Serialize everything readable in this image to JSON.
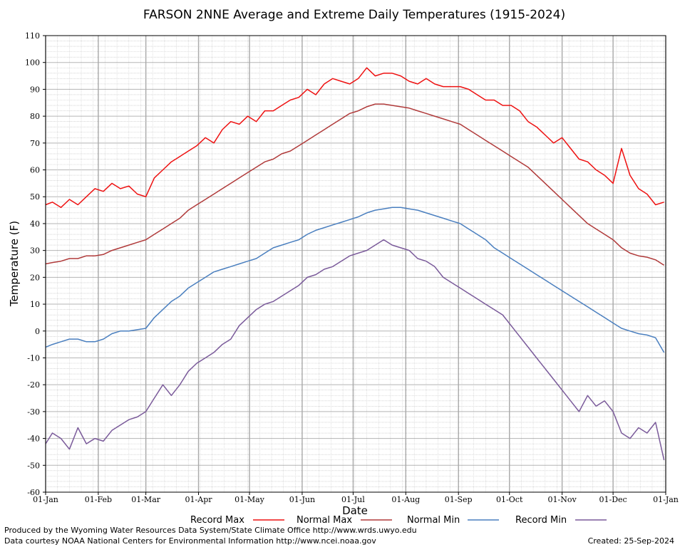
{
  "chart_data": {
    "type": "line",
    "title": "FARSON 2NNE Average and Extreme Daily Temperatures (1915-2024)",
    "xlabel": "Date",
    "ylabel": "Temperature (F)",
    "ylim": [
      -60,
      110
    ],
    "yticks": [
      110,
      100,
      90,
      80,
      70,
      60,
      50,
      40,
      30,
      20,
      10,
      0,
      -10,
      -20,
      -30,
      -40,
      -50,
      -60
    ],
    "xticks": [
      "01-Jan",
      "01-Feb",
      "01-Mar",
      "01-Apr",
      "01-May",
      "01-Jun",
      "01-Jul",
      "01-Aug",
      "01-Sep",
      "01-Oct",
      "01-Nov",
      "01-Dec",
      "01-Jan"
    ],
    "xtick_days": [
      1,
      32,
      60,
      91,
      121,
      152,
      182,
      213,
      244,
      274,
      305,
      335,
      366
    ],
    "xlim": [
      1,
      366
    ],
    "grid": true,
    "legend_placement": "bottom",
    "series": [
      {
        "name": "Record Max",
        "color": "#ee1111",
        "x": [
          1,
          5,
          10,
          15,
          20,
          25,
          30,
          35,
          40,
          45,
          50,
          55,
          60,
          65,
          70,
          75,
          80,
          85,
          90,
          95,
          100,
          105,
          110,
          115,
          120,
          125,
          130,
          135,
          140,
          145,
          150,
          155,
          160,
          165,
          170,
          175,
          180,
          185,
          190,
          195,
          200,
          205,
          210,
          215,
          220,
          225,
          230,
          235,
          240,
          245,
          250,
          255,
          260,
          265,
          270,
          275,
          280,
          285,
          290,
          295,
          300,
          305,
          310,
          315,
          320,
          325,
          330,
          335,
          340,
          345,
          350,
          355,
          360,
          365
        ],
        "values": [
          47,
          48,
          46,
          49,
          47,
          50,
          53,
          52,
          55,
          53,
          54,
          51,
          50,
          57,
          60,
          63,
          65,
          67,
          69,
          72,
          70,
          75,
          78,
          77,
          80,
          78,
          82,
          82,
          84,
          86,
          87,
          90,
          88,
          92,
          94,
          93,
          92,
          94,
          98,
          95,
          96,
          96,
          95,
          93,
          92,
          94,
          92,
          91,
          91,
          91,
          90,
          88,
          86,
          86,
          84,
          84,
          82,
          78,
          76,
          73,
          70,
          72,
          68,
          64,
          63,
          60,
          58,
          55,
          68,
          58,
          53,
          51,
          47,
          48
        ]
      },
      {
        "name": "Normal Max",
        "color": "#b03a3a",
        "x": [
          1,
          5,
          10,
          15,
          20,
          25,
          30,
          35,
          40,
          45,
          50,
          55,
          60,
          65,
          70,
          75,
          80,
          85,
          90,
          95,
          100,
          105,
          110,
          115,
          120,
          125,
          130,
          135,
          140,
          145,
          150,
          155,
          160,
          165,
          170,
          175,
          180,
          185,
          190,
          195,
          200,
          205,
          210,
          215,
          220,
          225,
          230,
          235,
          240,
          245,
          250,
          255,
          260,
          265,
          270,
          275,
          280,
          285,
          290,
          295,
          300,
          305,
          310,
          315,
          320,
          325,
          330,
          335,
          340,
          345,
          350,
          355,
          360,
          365
        ],
        "values": [
          25,
          25.5,
          26,
          27,
          27,
          28,
          28,
          28.5,
          30,
          31,
          32,
          33,
          34,
          36,
          38,
          40,
          42,
          45,
          47,
          49,
          51,
          53,
          55,
          57,
          59,
          61,
          63,
          64,
          66,
          67,
          69,
          71,
          73,
          75,
          77,
          79,
          81,
          82,
          83.5,
          84.5,
          84.5,
          84,
          83.5,
          83,
          82,
          81,
          80,
          79,
          78,
          77,
          75,
          73,
          71,
          69,
          67,
          65,
          63,
          61,
          58,
          55,
          52,
          49,
          46,
          43,
          40,
          38,
          36,
          34,
          31,
          29,
          28,
          27.5,
          26.5,
          24.5
        ]
      },
      {
        "name": "Normal Min",
        "color": "#4a7fbf",
        "x": [
          1,
          5,
          10,
          15,
          20,
          25,
          30,
          35,
          40,
          45,
          50,
          55,
          60,
          65,
          70,
          75,
          80,
          85,
          90,
          95,
          100,
          105,
          110,
          115,
          120,
          125,
          130,
          135,
          140,
          145,
          150,
          155,
          160,
          165,
          170,
          175,
          180,
          185,
          190,
          195,
          200,
          205,
          210,
          215,
          220,
          225,
          230,
          235,
          240,
          245,
          250,
          255,
          260,
          265,
          270,
          275,
          280,
          285,
          290,
          295,
          300,
          305,
          310,
          315,
          320,
          325,
          330,
          335,
          340,
          345,
          350,
          355,
          360,
          365
        ],
        "values": [
          -6,
          -5,
          -4,
          -3,
          -3,
          -4,
          -4,
          -3,
          -1,
          0,
          0,
          0.5,
          1,
          5,
          8,
          11,
          13,
          16,
          18,
          20,
          22,
          23,
          24,
          25,
          26,
          27,
          29,
          31,
          32,
          33,
          34,
          36,
          37.5,
          38.5,
          39.5,
          40.5,
          41.5,
          42.5,
          44,
          45,
          45.5,
          46,
          46,
          45.5,
          45,
          44,
          43,
          42,
          41,
          40,
          38,
          36,
          34,
          31,
          29,
          27,
          25,
          23,
          21,
          19,
          17,
          15,
          13,
          11,
          9,
          7,
          5,
          3,
          1,
          0,
          -1,
          -1.5,
          -2.5,
          -8
        ]
      },
      {
        "name": "Record Min",
        "color": "#7a5a9a",
        "x": [
          1,
          5,
          10,
          15,
          20,
          25,
          30,
          35,
          40,
          45,
          50,
          55,
          60,
          65,
          70,
          75,
          80,
          85,
          90,
          95,
          100,
          105,
          110,
          115,
          120,
          125,
          130,
          135,
          140,
          145,
          150,
          155,
          160,
          165,
          170,
          175,
          180,
          185,
          190,
          195,
          200,
          205,
          210,
          215,
          220,
          225,
          230,
          235,
          240,
          245,
          250,
          255,
          260,
          265,
          270,
          275,
          280,
          285,
          290,
          295,
          300,
          305,
          310,
          315,
          320,
          325,
          330,
          335,
          340,
          345,
          350,
          355,
          360,
          365
        ],
        "values": [
          -42,
          -38,
          -40,
          -44,
          -36,
          -42,
          -40,
          -41,
          -37,
          -35,
          -33,
          -32,
          -30,
          -25,
          -20,
          -24,
          -20,
          -15,
          -12,
          -10,
          -8,
          -5,
          -3,
          2,
          5,
          8,
          10,
          11,
          13,
          15,
          17,
          20,
          21,
          23,
          24,
          26,
          28,
          29,
          30,
          32,
          34,
          32,
          31,
          30,
          27,
          26,
          24,
          20,
          18,
          16,
          14,
          12,
          10,
          8,
          6,
          2,
          -2,
          -6,
          -10,
          -14,
          -18,
          -22,
          -26,
          -30,
          -24,
          -28,
          -26,
          -30,
          -38,
          -40,
          -36,
          -38,
          -34,
          -48
        ]
      }
    ]
  },
  "legend": {
    "record_max": "Record Max",
    "normal_max": "Normal Max",
    "normal_min": "Normal Min",
    "record_min": "Record Min"
  },
  "credits": {
    "produced_by": "Produced by the Wyoming Water Resources Data System/State Climate Office http://www.wrds.uwyo.edu",
    "data_courtesy": "Data courtesy NOAA National Centers for Environmental Information http://www.ncei.noaa.gov",
    "created": "Created:  25-Sep-2024"
  }
}
